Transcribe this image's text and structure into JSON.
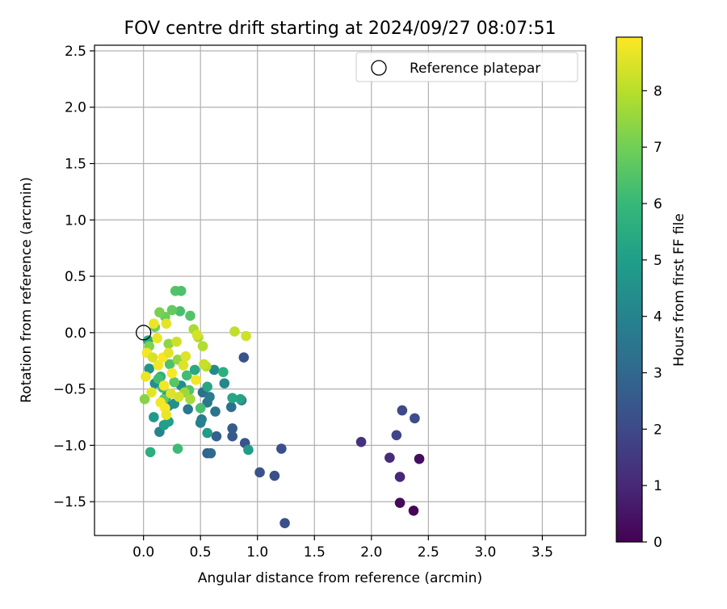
{
  "chart_data": {
    "type": "scatter",
    "title": "FOV centre drift starting at 2024/09/27 08:07:51",
    "xlabel": "Angular distance from reference (arcmin)",
    "ylabel": "Rotation from reference (arcmin)",
    "xlim": [
      -0.43,
      3.88
    ],
    "ylim": [
      -1.8,
      2.55
    ],
    "xticks": [
      "0.0",
      "0.5",
      "1.0",
      "1.5",
      "2.0",
      "2.5",
      "3.0",
      "3.5"
    ],
    "xtick_values": [
      0,
      0.5,
      1.0,
      1.5,
      2.0,
      2.5,
      3.0,
      3.5
    ],
    "yticks": [
      "−1.5",
      "−1.0",
      "−0.5",
      "0.0",
      "0.5",
      "1.0",
      "1.5",
      "2.0",
      "2.5"
    ],
    "ytick_values": [
      -1.5,
      -1.0,
      -0.5,
      0.0,
      0.5,
      1.0,
      1.5,
      2.0,
      2.5
    ],
    "grid": true,
    "legend": {
      "position": "top-right",
      "entries": [
        "Reference platepar"
      ]
    },
    "reference_point": {
      "x": 0.0,
      "y": 0.0,
      "label": "Reference platepar"
    },
    "colorbar": {
      "label": "Hours from first FF file",
      "range": [
        0,
        8.95
      ],
      "ticks": [
        "0",
        "1",
        "2",
        "3",
        "4",
        "5",
        "6",
        "7",
        "8"
      ],
      "tick_values": [
        0,
        1,
        2,
        3,
        4,
        5,
        6,
        7,
        8
      ],
      "colormap": "viridis",
      "stops": [
        "#440154",
        "#482878",
        "#3e4989",
        "#31688e",
        "#26828e",
        "#1f9e89",
        "#35b779",
        "#6ece58",
        "#b5de2b",
        "#fde725"
      ]
    },
    "points": [
      {
        "x": 2.37,
        "y": -1.58,
        "c": 0.1
      },
      {
        "x": 2.25,
        "y": -1.51,
        "c": 0.2
      },
      {
        "x": 2.42,
        "y": -1.12,
        "c": 0.3
      },
      {
        "x": 2.25,
        "y": -1.28,
        "c": 1.0
      },
      {
        "x": 2.16,
        "y": -1.11,
        "c": 1.1
      },
      {
        "x": 1.91,
        "y": -0.97,
        "c": 1.3
      },
      {
        "x": 2.22,
        "y": -0.91,
        "c": 1.9
      },
      {
        "x": 2.27,
        "y": -0.69,
        "c": 2.0
      },
      {
        "x": 2.38,
        "y": -0.76,
        "c": 2.1
      },
      {
        "x": 1.24,
        "y": -1.69,
        "c": 2.2
      },
      {
        "x": 1.15,
        "y": -1.27,
        "c": 2.2
      },
      {
        "x": 1.02,
        "y": -1.24,
        "c": 2.3
      },
      {
        "x": 1.21,
        "y": -1.03,
        "c": 2.2
      },
      {
        "x": 0.89,
        "y": -0.98,
        "c": 2.3
      },
      {
        "x": 0.88,
        "y": -0.22,
        "c": 2.3
      },
      {
        "x": 0.78,
        "y": -0.92,
        "c": 2.5
      },
      {
        "x": 0.78,
        "y": -0.85,
        "c": 2.6
      },
      {
        "x": 0.64,
        "y": -0.92,
        "c": 2.7
      },
      {
        "x": 0.56,
        "y": -1.07,
        "c": 2.8
      },
      {
        "x": 0.59,
        "y": -1.07,
        "c": 3.0
      },
      {
        "x": 0.86,
        "y": -0.6,
        "c": 3.1
      },
      {
        "x": 0.77,
        "y": -0.66,
        "c": 3.3
      },
      {
        "x": 0.52,
        "y": -0.53,
        "c": 3.2
      },
      {
        "x": 0.63,
        "y": -0.7,
        "c": 3.4
      },
      {
        "x": 0.56,
        "y": -0.62,
        "c": 3.6
      },
      {
        "x": 0.39,
        "y": -0.68,
        "c": 3.6
      },
      {
        "x": 0.58,
        "y": -0.57,
        "c": 3.7
      },
      {
        "x": 0.51,
        "y": -0.77,
        "c": 3.7
      },
      {
        "x": 0.5,
        "y": -0.8,
        "c": 3.9
      },
      {
        "x": 0.14,
        "y": -0.88,
        "c": 4.0
      },
      {
        "x": 0.22,
        "y": -0.65,
        "c": 4.0
      },
      {
        "x": 0.71,
        "y": -0.45,
        "c": 4.2
      },
      {
        "x": 0.62,
        "y": -0.33,
        "c": 4.3
      },
      {
        "x": 0.2,
        "y": -0.57,
        "c": 4.3
      },
      {
        "x": 0.33,
        "y": -0.47,
        "c": 4.4
      },
      {
        "x": 0.27,
        "y": -0.63,
        "c": 4.5
      },
      {
        "x": 0.1,
        "y": -0.45,
        "c": 4.5
      },
      {
        "x": 0.05,
        "y": -0.32,
        "c": 4.6
      },
      {
        "x": 0.09,
        "y": -0.75,
        "c": 4.8
      },
      {
        "x": 0.56,
        "y": -0.89,
        "c": 4.9
      },
      {
        "x": 0.92,
        "y": -1.04,
        "c": 4.9
      },
      {
        "x": 0.18,
        "y": -0.82,
        "c": 5.0
      },
      {
        "x": 0.22,
        "y": -0.79,
        "c": 5.1
      },
      {
        "x": 0.85,
        "y": -0.59,
        "c": 5.2
      },
      {
        "x": 0.78,
        "y": -0.58,
        "c": 5.3
      },
      {
        "x": 0.56,
        "y": -0.48,
        "c": 5.3
      },
      {
        "x": 0.45,
        "y": -0.33,
        "c": 5.4
      },
      {
        "x": 0.7,
        "y": -0.35,
        "c": 5.6
      },
      {
        "x": 0.06,
        "y": -1.06,
        "c": 5.6
      },
      {
        "x": 0.15,
        "y": -0.39,
        "c": 5.7
      },
      {
        "x": 0.04,
        "y": -0.07,
        "c": 5.4
      },
      {
        "x": 0.38,
        "y": -0.38,
        "c": 6.2
      },
      {
        "x": 0.3,
        "y": -1.03,
        "c": 6.1
      },
      {
        "x": 0.17,
        "y": -0.49,
        "c": 6.0
      },
      {
        "x": 0.13,
        "y": -0.41,
        "c": 6.2
      },
      {
        "x": 0.23,
        "y": -0.28,
        "c": 6.4
      },
      {
        "x": 0.5,
        "y": -0.67,
        "c": 6.3
      },
      {
        "x": 0.4,
        "y": -0.51,
        "c": 6.5
      },
      {
        "x": 0.27,
        "y": -0.44,
        "c": 6.6
      },
      {
        "x": 0.18,
        "y": -0.59,
        "c": 6.7
      },
      {
        "x": 0.28,
        "y": 0.37,
        "c": 6.5
      },
      {
        "x": 0.33,
        "y": 0.37,
        "c": 6.4
      },
      {
        "x": 0.32,
        "y": 0.19,
        "c": 6.3
      },
      {
        "x": 0.41,
        "y": 0.15,
        "c": 6.5
      },
      {
        "x": 0.25,
        "y": 0.2,
        "c": 6.8
      },
      {
        "x": 0.19,
        "y": 0.14,
        "c": 6.9
      },
      {
        "x": 0.14,
        "y": 0.18,
        "c": 7.1
      },
      {
        "x": 0.1,
        "y": 0.05,
        "c": 7.0
      },
      {
        "x": 0.05,
        "y": -0.12,
        "c": 7.2
      },
      {
        "x": 0.01,
        "y": -0.59,
        "c": 7.3
      },
      {
        "x": 0.22,
        "y": -0.1,
        "c": 7.4
      },
      {
        "x": 0.3,
        "y": -0.24,
        "c": 7.5
      },
      {
        "x": 0.36,
        "y": -0.53,
        "c": 7.6
      },
      {
        "x": 0.41,
        "y": -0.59,
        "c": 7.7
      },
      {
        "x": 0.48,
        "y": -0.04,
        "c": 7.8
      },
      {
        "x": 0.44,
        "y": 0.03,
        "c": 7.8
      },
      {
        "x": 0.52,
        "y": -0.12,
        "c": 7.9
      },
      {
        "x": 0.55,
        "y": -0.3,
        "c": 8.0
      },
      {
        "x": 0.53,
        "y": -0.28,
        "c": 8.2
      },
      {
        "x": 0.8,
        "y": 0.01,
        "c": 8.1
      },
      {
        "x": 0.9,
        "y": -0.03,
        "c": 8.3
      },
      {
        "x": 0.47,
        "y": -0.02,
        "c": 8.4
      },
      {
        "x": 0.37,
        "y": -0.21,
        "c": 8.5
      },
      {
        "x": 0.29,
        "y": -0.08,
        "c": 8.3
      },
      {
        "x": 0.2,
        "y": 0.08,
        "c": 8.6
      },
      {
        "x": 0.09,
        "y": 0.08,
        "c": 8.7
      },
      {
        "x": 0.03,
        "y": -0.18,
        "c": 8.8
      },
      {
        "x": 0.02,
        "y": -0.39,
        "c": 8.7
      },
      {
        "x": 0.07,
        "y": -0.53,
        "c": 8.6
      },
      {
        "x": 0.15,
        "y": -0.62,
        "c": 8.8
      },
      {
        "x": 0.19,
        "y": -0.67,
        "c": 8.9
      },
      {
        "x": 0.2,
        "y": -0.73,
        "c": 8.7
      },
      {
        "x": 0.24,
        "y": -0.54,
        "c": 8.5
      },
      {
        "x": 0.31,
        "y": -0.57,
        "c": 8.4
      },
      {
        "x": 0.18,
        "y": -0.47,
        "c": 8.8
      },
      {
        "x": 0.25,
        "y": -0.36,
        "c": 8.9
      },
      {
        "x": 0.17,
        "y": -0.22,
        "c": 8.9
      },
      {
        "x": 0.13,
        "y": -0.29,
        "c": 8.8
      },
      {
        "x": 0.12,
        "y": -0.05,
        "c": 8.7
      },
      {
        "x": 0.22,
        "y": -0.18,
        "c": 8.6
      },
      {
        "x": 0.46,
        "y": -0.42,
        "c": 8.8
      },
      {
        "x": 0.35,
        "y": -0.29,
        "c": 8.5
      },
      {
        "x": 0.08,
        "y": -0.22,
        "c": 8.4
      }
    ]
  }
}
